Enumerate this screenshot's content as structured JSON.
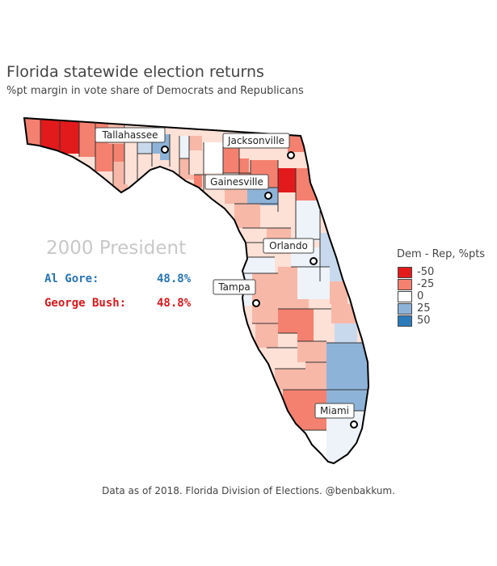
{
  "title": "Florida statewide election returns",
  "subtitle": "%pt margin in vote share of Democrats and Republicans",
  "election": {
    "title": "2000 President",
    "candidates": [
      {
        "name": "Al Gore:",
        "share": "48.8%",
        "color": "#2874b4"
      },
      {
        "name": "George Bush:",
        "share": "48.8%",
        "color": "#d7191c"
      }
    ]
  },
  "cities": [
    {
      "name": "Tallahassee"
    },
    {
      "name": "Jacksonville"
    },
    {
      "name": "Gainesville"
    },
    {
      "name": "Orlando"
    },
    {
      "name": "Tampa"
    },
    {
      "name": "Miami"
    }
  ],
  "legend": {
    "title": "Dem - Rep, %pts",
    "items": [
      {
        "label": "-50",
        "color": "#e31a1c"
      },
      {
        "label": "-25",
        "color": "#f4816f"
      },
      {
        "label": "0",
        "color": "#ffffff"
      },
      {
        "label": "25",
        "color": "#8eb3d8"
      },
      {
        "label": "50",
        "color": "#2b7bba"
      }
    ]
  },
  "footer": "Data as of 2018. Florida Division of Elections. @benbakkum.",
  "colors": {
    "strong_rep": "#e31a1c",
    "rep": "#f4816f",
    "lean_rep": "#f7b8a8",
    "slight_rep": "#fde0d6",
    "tossup": "#ffffff",
    "slight_dem": "#eef3fa",
    "lean_dem": "#c9d9ed",
    "dem": "#8eb3d8"
  }
}
